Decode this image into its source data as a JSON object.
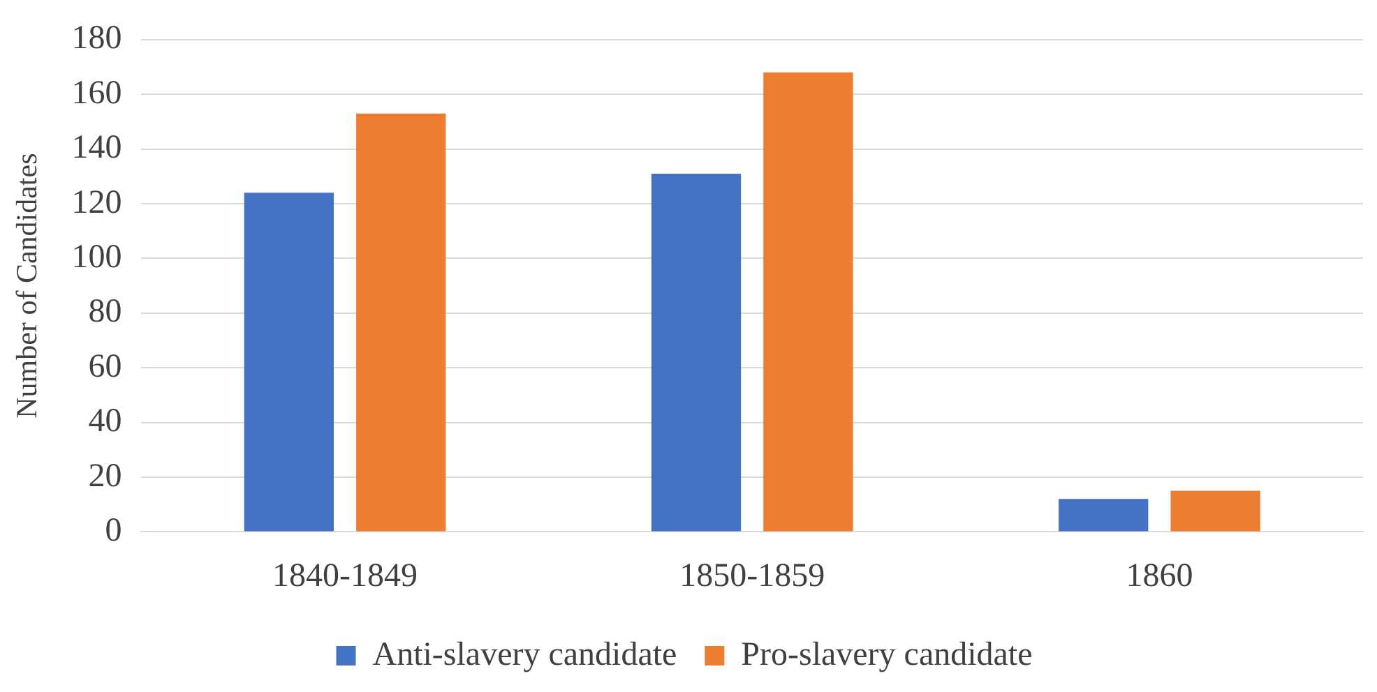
{
  "chart_data": {
    "type": "bar",
    "ylabel": "Number of Candidates",
    "categories": [
      "1840-1849",
      "1850-1859",
      "1860"
    ],
    "series": [
      {
        "name": "Anti-slavery candidate",
        "color": "#4472c4",
        "values": [
          124,
          131,
          12
        ]
      },
      {
        "name": "Pro-slavery candidate",
        "color": "#ed7d31",
        "values": [
          153,
          168,
          15
        ]
      }
    ],
    "ylim": [
      0,
      180
    ],
    "yticks": [
      0,
      20,
      40,
      60,
      80,
      100,
      120,
      140,
      160,
      180
    ],
    "grid": "y",
    "legend": "bottom"
  }
}
